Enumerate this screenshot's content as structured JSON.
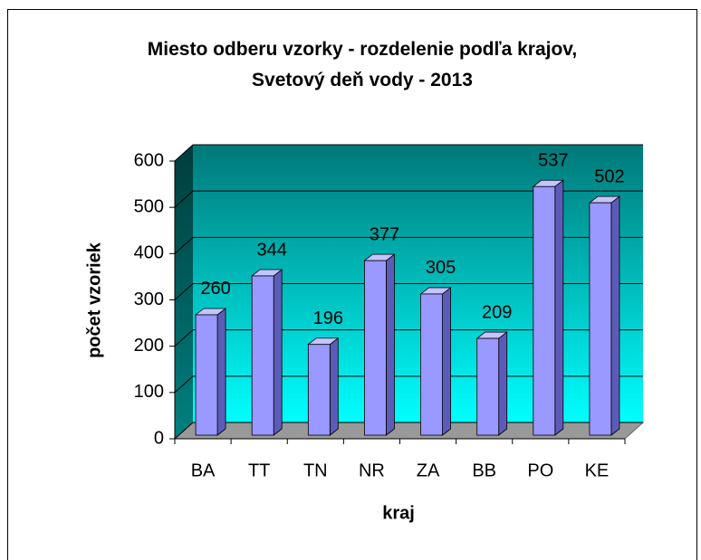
{
  "chart_data": {
    "type": "bar",
    "title": "Miesto odberu vzorky - rozdelenie podľa krajov, Svetový deň vody - 2013",
    "x_label": "kraj",
    "y_label": "počet vzoriek",
    "categories": [
      "BA",
      "TT",
      "TN",
      "NR",
      "ZA",
      "BB",
      "PO",
      "KE"
    ],
    "values": [
      260,
      344,
      196,
      377,
      305,
      209,
      537,
      502
    ],
    "color": "#9999ff",
    "ylim": [
      0,
      600
    ],
    "yticks": [
      0,
      100,
      200,
      300,
      400,
      500,
      600
    ],
    "grid": true
  }
}
